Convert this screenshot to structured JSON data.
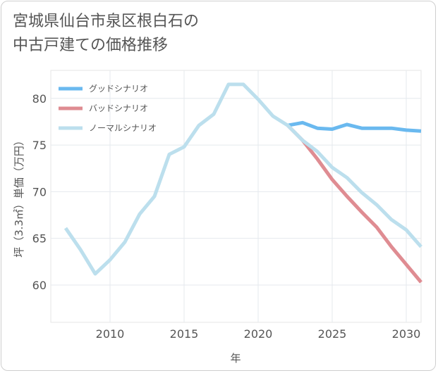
{
  "title_lines": [
    "宮城県仙台市泉区根白石の",
    "中古戸建ての価格推移"
  ],
  "chart_data": {
    "type": "line",
    "xlabel": "年",
    "ylabel": "坪（3.3㎡）単価（万円）",
    "xlim": [
      2006,
      2031
    ],
    "ylim": [
      56,
      83
    ],
    "xticks": [
      2010,
      2015,
      2020,
      2025,
      2030
    ],
    "yticks": [
      60,
      65,
      70,
      75,
      80
    ],
    "legend_position": "top-left",
    "series": [
      {
        "name": "グッドシナリオ",
        "color": "#6ab9ef",
        "x": [
          2022,
          2023,
          2024,
          2025,
          2026,
          2027,
          2028,
          2029,
          2030,
          2031
        ],
        "values": [
          77.1,
          77.4,
          76.8,
          76.7,
          77.2,
          76.8,
          76.8,
          76.8,
          76.6,
          76.5
        ]
      },
      {
        "name": "バッドシナリオ",
        "color": "#df8c92",
        "x": [
          2022,
          2023,
          2024,
          2025,
          2026,
          2027,
          2028,
          2029,
          2030,
          2031
        ],
        "values": [
          77.1,
          75.5,
          73.5,
          71.3,
          69.5,
          67.8,
          66.2,
          64.1,
          62.2,
          60.3
        ]
      },
      {
        "name": "ノーマルシナリオ",
        "color": "#bcdfed",
        "x": [
          2007,
          2008,
          2009,
          2010,
          2011,
          2012,
          2013,
          2014,
          2015,
          2016,
          2017,
          2018,
          2019,
          2020,
          2021,
          2022,
          2023,
          2024,
          2025,
          2026,
          2027,
          2028,
          2029,
          2030,
          2031
        ],
        "values": [
          66.1,
          63.8,
          61.2,
          62.7,
          64.6,
          67.6,
          69.5,
          74.0,
          74.8,
          77.1,
          78.3,
          81.5,
          81.5,
          79.9,
          78.1,
          77.1,
          75.5,
          74.3,
          72.6,
          71.5,
          69.9,
          68.6,
          67.0,
          65.9,
          64.1
        ]
      }
    ]
  }
}
